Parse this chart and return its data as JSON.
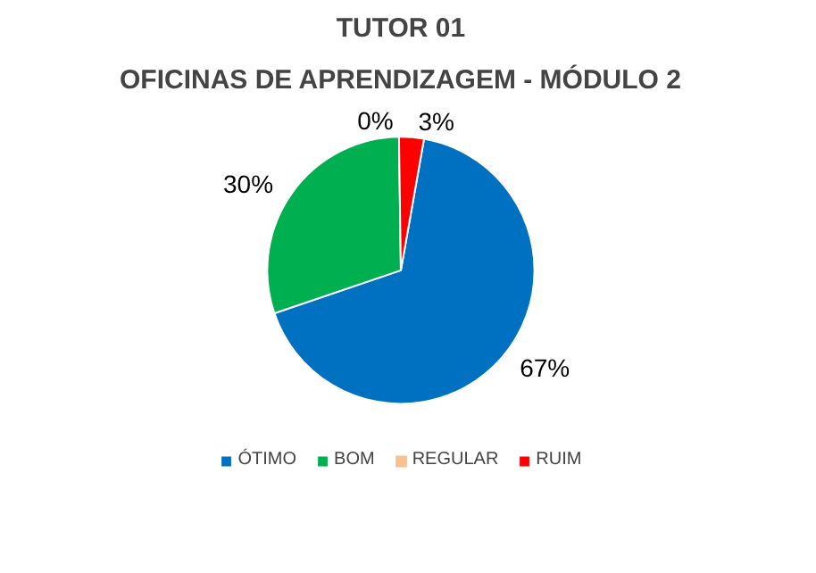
{
  "chart_data": {
    "type": "pie",
    "title": "TUTOR 01",
    "subtitle": "OFICINAS DE APRENDIZAGEM - MÓDULO 2",
    "categories": [
      "ÓTIMO",
      "BOM",
      "REGULAR",
      "RUIM"
    ],
    "values": [
      67,
      30,
      0,
      3
    ],
    "colors": [
      "#0070c0",
      "#00b050",
      "#fac090",
      "#ff0000"
    ],
    "value_labels": [
      "67%",
      "30%",
      "0%",
      "3%"
    ],
    "legend": "bottom"
  }
}
